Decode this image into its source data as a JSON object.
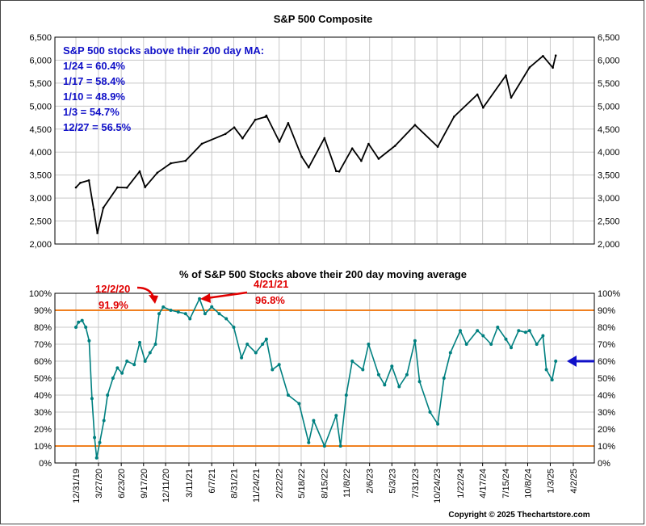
{
  "colors": {
    "grid": "#c8c8c8",
    "sp500_line": "#000000",
    "pct_line": "#008080",
    "threshold_line": "#f08020",
    "annotation_blue": "#1010c8",
    "annotation_red": "#e00000",
    "arrow_blue": "#1010c8"
  },
  "chart_data": [
    {
      "type": "line",
      "title": "S&P 500 Composite",
      "ylim": [
        2000,
        6500
      ],
      "y_ticks": [
        "2,000",
        "2,500",
        "3,000",
        "3,500",
        "4,000",
        "4,500",
        "5,000",
        "5,500",
        "6,000",
        "6,500"
      ],
      "y_tick_values": [
        2000,
        2500,
        3000,
        3500,
        4000,
        4500,
        5000,
        5500,
        6000,
        6500
      ],
      "grid": true,
      "axes_sides": [
        "left",
        "right"
      ],
      "annotation_title": "S&P 500 stocks above their 200 day MA:",
      "annotation_lines": [
        "1/24 = 60.4%",
        "1/17 = 58.4%",
        "1/10 = 48.9%",
        "1/3 = 54.7%",
        "12/27 = 56.5%"
      ],
      "series": [
        {
          "x": [
            "2019-12-31",
            "2020-01-17",
            "2020-02-19",
            "2020-03-09",
            "2020-03-23",
            "2020-04-15",
            "2020-06-08",
            "2020-07-15",
            "2020-09-02",
            "2020-09-23",
            "2020-11-09",
            "2020-12-31",
            "2021-02-26",
            "2021-04-30",
            "2021-07-30",
            "2021-09-02",
            "2021-10-04",
            "2021-11-22",
            "2021-12-31",
            "2022-01-04",
            "2022-02-23",
            "2022-03-29",
            "2022-05-20",
            "2022-06-16",
            "2022-08-16",
            "2022-09-30",
            "2022-10-12",
            "2022-12-01",
            "2023-01-05",
            "2023-02-02",
            "2023-03-13",
            "2023-05-15",
            "2023-07-31",
            "2023-10-27",
            "2023-12-29",
            "2024-03-28",
            "2024-04-19",
            "2024-07-16",
            "2024-08-05",
            "2024-10-15",
            "2024-12-06",
            "2025-01-13",
            "2025-01-24"
          ],
          "values": [
            3231,
            3330,
            3386,
            2750,
            2237,
            2790,
            3232,
            3226,
            3580,
            3237,
            3550,
            3756,
            3811,
            4181,
            4395,
            4537,
            4300,
            4704,
            4766,
            4793,
            4225,
            4631,
            3901,
            3667,
            4305,
            3585,
            3577,
            4080,
            3808,
            4179,
            3855,
            4136,
            4589,
            4117,
            4770,
            5254,
            4967,
            5667,
            5186,
            5842,
            6090,
            5836,
            6101
          ]
        }
      ]
    },
    {
      "type": "line",
      "title": "% of S&P 500 Stocks above their 200 day moving average",
      "ylim": [
        0,
        100
      ],
      "y_ticks": [
        "0%",
        "10%",
        "20%",
        "30%",
        "40%",
        "50%",
        "60%",
        "70%",
        "80%",
        "90%",
        "100%"
      ],
      "y_tick_values": [
        0,
        10,
        20,
        30,
        40,
        50,
        60,
        70,
        80,
        90,
        100
      ],
      "grid": true,
      "axes_sides": [
        "left",
        "right"
      ],
      "x_ticks": [
        "12/31/19",
        "3/27/20",
        "6/23/20",
        "9/17/20",
        "12/11/20",
        "3/11/21",
        "6/7/21",
        "8/31/21",
        "11/24/21",
        "2/22/22",
        "5/18/22",
        "8/15/22",
        "11/8/22",
        "2/6/23",
        "5/3/23",
        "7/31/23",
        "10/24/23",
        "1/22/24",
        "4/17/24",
        "7/15/24",
        "10/8/24",
        "1/3/25",
        "4/2/25"
      ],
      "x_tick_values": [
        "2019-12-31",
        "2020-03-27",
        "2020-06-23",
        "2020-09-17",
        "2020-12-11",
        "2021-03-11",
        "2021-06-07",
        "2021-08-31",
        "2021-11-24",
        "2022-02-22",
        "2022-05-18",
        "2022-08-15",
        "2022-11-08",
        "2023-02-06",
        "2023-05-03",
        "2023-07-31",
        "2023-10-24",
        "2024-01-22",
        "2024-04-17",
        "2024-07-15",
        "2024-10-08",
        "2025-01-03",
        "2025-04-02"
      ],
      "reference_lines": [
        10,
        90
      ],
      "annotations": [
        {
          "date": "12/2/20",
          "value": "91.9%"
        },
        {
          "date": "4/21/21",
          "value": "96.8%"
        }
      ],
      "series": [
        {
          "x": [
            "2019-12-31",
            "2020-01-10",
            "2020-01-24",
            "2020-02-07",
            "2020-02-20",
            "2020-03-02",
            "2020-03-12",
            "2020-03-20",
            "2020-04-01",
            "2020-04-17",
            "2020-05-01",
            "2020-05-22",
            "2020-06-08",
            "2020-06-26",
            "2020-07-15",
            "2020-08-12",
            "2020-09-02",
            "2020-09-23",
            "2020-10-12",
            "2020-11-02",
            "2020-11-16",
            "2020-12-02",
            "2020-12-31",
            "2021-01-29",
            "2021-02-26",
            "2021-03-15",
            "2021-04-21",
            "2021-05-12",
            "2021-06-07",
            "2021-07-06",
            "2021-08-02",
            "2021-08-31",
            "2021-09-30",
            "2021-10-22",
            "2021-11-24",
            "2021-12-20",
            "2022-01-04",
            "2022-01-27",
            "2022-02-22",
            "2022-03-29",
            "2022-05-10",
            "2022-06-16",
            "2022-07-05",
            "2022-08-16",
            "2022-09-30",
            "2022-10-17",
            "2022-11-08",
            "2022-12-01",
            "2023-01-11",
            "2023-02-02",
            "2023-03-13",
            "2023-04-05",
            "2023-05-03",
            "2023-05-31",
            "2023-06-30",
            "2023-07-31",
            "2023-08-18",
            "2023-09-27",
            "2023-10-27",
            "2023-11-20",
            "2023-12-15",
            "2024-01-22",
            "2024-02-15",
            "2024-03-28",
            "2024-04-19",
            "2024-05-20",
            "2024-06-14",
            "2024-07-16",
            "2024-08-05",
            "2024-09-03",
            "2024-09-30",
            "2024-10-15",
            "2024-11-12",
            "2024-12-06",
            "2024-12-19",
            "2025-01-10",
            "2025-01-24"
          ],
          "values": [
            80,
            83,
            84,
            80,
            72,
            38,
            15,
            3,
            12,
            25,
            40,
            50,
            56,
            53,
            60,
            58,
            71,
            60,
            65,
            70,
            88,
            91.9,
            90,
            89,
            88,
            85,
            96.8,
            88,
            92,
            88,
            85,
            80,
            62,
            70,
            65,
            70,
            73,
            55,
            58,
            40,
            35,
            12,
            25,
            10,
            28,
            10,
            40,
            60,
            55,
            70,
            52,
            46,
            57,
            45,
            52,
            72,
            48,
            30,
            23,
            50,
            65,
            78,
            70,
            78,
            75,
            70,
            80,
            73,
            68,
            78,
            77,
            78,
            70,
            75,
            55,
            49,
            60
          ]
        }
      ]
    }
  ],
  "copyright": "Copyright © 2025 Thechartstore.com"
}
